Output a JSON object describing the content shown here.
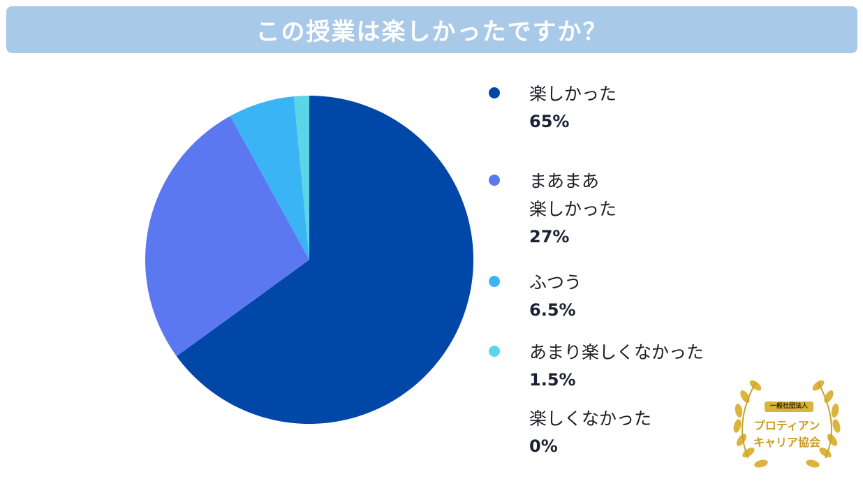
{
  "title": "この授業は楽しかったですか？",
  "chart_data": {
    "type": "pie",
    "title": "この授業は楽しかったですか？",
    "slices": [
      {
        "label": "楽しかった",
        "value": 65,
        "display": "65%",
        "color": "#0047a8"
      },
      {
        "label": "まあまあ\n楽しかった",
        "value": 27,
        "display": "27%",
        "color": "#5b78f0"
      },
      {
        "label": "ふつう",
        "value": 6.5,
        "display": "6.5%",
        "color": "#3ab4f5"
      },
      {
        "label": "あまり楽しくなかった",
        "value": 1.5,
        "display": "1.5%",
        "color": "#5ad6e6"
      },
      {
        "label": "楽しくなかった",
        "value": 0,
        "display": "0%",
        "color": null
      }
    ],
    "start_angle": "12 o'clock, clockwise",
    "legend_position": "right"
  },
  "badge": {
    "ribbon": "一般社団法人",
    "line1": "プロティアン",
    "line2": "キャリア協会",
    "color": "#d9b33b"
  }
}
